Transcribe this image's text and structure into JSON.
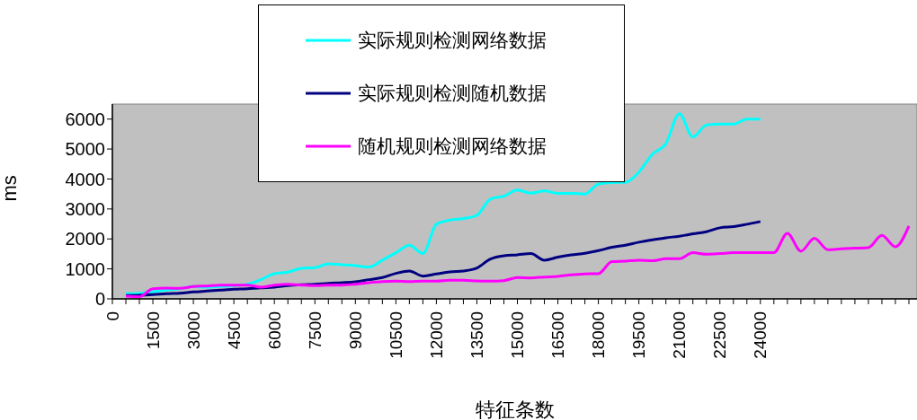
{
  "chart_data": {
    "type": "line",
    "xlabel": "特征条数",
    "ylabel": "ms",
    "xlim": [
      0,
      29800
    ],
    "ylim": [
      0,
      6500
    ],
    "yticks": [
      0,
      1000,
      2000,
      3000,
      4000,
      5000,
      6000
    ],
    "xticks": [
      0,
      {
        "value": 500,
        "label": null
      },
      {
        "value": 1000,
        "label": null
      },
      1500,
      {
        "value": 2000,
        "label": null
      },
      {
        "value": 2500,
        "label": null
      },
      3000,
      {
        "value": 3500,
        "label": null
      },
      {
        "value": 4000,
        "label": null
      },
      4500,
      {
        "value": 5000,
        "label": null
      },
      {
        "value": 5500,
        "label": null
      },
      6000,
      {
        "value": 6500,
        "label": null
      },
      {
        "value": 7000,
        "label": null
      },
      7500,
      {
        "value": 8000,
        "label": null
      },
      {
        "value": 8500,
        "label": null
      },
      9000,
      {
        "value": 9500,
        "label": null
      },
      {
        "value": 10000,
        "label": null
      },
      10500,
      {
        "value": 11000,
        "label": null
      },
      {
        "value": 11500,
        "label": null
      },
      12000,
      {
        "value": 12500,
        "label": null
      },
      {
        "value": 13000,
        "label": null
      },
      13500,
      {
        "value": 14000,
        "label": null
      },
      {
        "value": 14500,
        "label": null
      },
      15000,
      {
        "value": 15500,
        "label": null
      },
      {
        "value": 16000,
        "label": null
      },
      16500,
      {
        "value": 17000,
        "label": null
      },
      {
        "value": 17500,
        "label": null
      },
      18000,
      {
        "value": 18500,
        "label": null
      },
      {
        "value": 19000,
        "label": null
      },
      19500,
      {
        "value": 20000,
        "label": null
      },
      {
        "value": 20500,
        "label": null
      },
      21000,
      {
        "value": 21500,
        "label": null
      },
      {
        "value": 22000,
        "label": null
      },
      22500,
      {
        "value": 23000,
        "label": null
      },
      {
        "value": 23500,
        "label": null
      },
      24000,
      {
        "value": 24500,
        "label": null
      },
      {
        "value": 25000,
        "label": null
      },
      {
        "value": 25500,
        "label": null
      },
      {
        "value": 26000,
        "label": null
      },
      {
        "value": 26500,
        "label": null
      },
      {
        "value": 27000,
        "label": null
      },
      {
        "value": 27500,
        "label": null
      },
      {
        "value": 28000,
        "label": null
      },
      {
        "value": 28500,
        "label": null
      },
      {
        "value": 29000,
        "label": null
      },
      {
        "value": 29500,
        "label": null
      }
    ],
    "grid": false,
    "legend": "top",
    "marker": "none",
    "line_style": "solid",
    "series": [
      {
        "name": "实际规则检测网络数据",
        "color": "#00ffff",
        "x": [
          500,
          1000,
          1500,
          2000,
          2500,
          3000,
          3500,
          4000,
          4500,
          5000,
          5500,
          6000,
          6500,
          7000,
          7500,
          8000,
          8500,
          9000,
          9500,
          10000,
          10500,
          11000,
          11500,
          12000,
          12500,
          13000,
          13500,
          14000,
          14500,
          15000,
          15500,
          16000,
          16500,
          17000,
          17500,
          18000,
          18500,
          19000,
          19500,
          20000,
          20500,
          21000,
          21500,
          22000,
          22500,
          23000,
          23500,
          24000
        ],
        "values": [
          170,
          180,
          240,
          290,
          340,
          410,
          390,
          410,
          440,
          490,
          640,
          840,
          890,
          1020,
          1040,
          1170,
          1140,
          1110,
          1060,
          1290,
          1540,
          1790,
          1510,
          2490,
          2630,
          2680,
          2790,
          3330,
          3430,
          3630,
          3530,
          3600,
          3520,
          3520,
          3500,
          3830,
          3880,
          3890,
          4230,
          4830,
          5180,
          6180,
          5400,
          5800,
          5830,
          5830,
          6000,
          6000
        ]
      },
      {
        "name": "实际规则检测随机数据",
        "color": "#000080",
        "x": [
          500,
          1000,
          1500,
          2000,
          2500,
          3000,
          3500,
          4000,
          4500,
          5000,
          5500,
          6000,
          6500,
          7000,
          7500,
          8000,
          8500,
          9000,
          9500,
          10000,
          10500,
          11000,
          11500,
          12000,
          12500,
          13000,
          13500,
          14000,
          14500,
          15000,
          15500,
          16000,
          16500,
          17000,
          17500,
          18000,
          18500,
          19000,
          19500,
          20000,
          20500,
          21000,
          21500,
          22000,
          22500,
          23000,
          23500,
          24000
        ],
        "values": [
          110,
          120,
          140,
          170,
          190,
          230,
          260,
          290,
          320,
          340,
          370,
          390,
          440,
          470,
          490,
          520,
          540,
          570,
          640,
          710,
          850,
          930,
          760,
          830,
          900,
          930,
          1030,
          1330,
          1440,
          1470,
          1510,
          1290,
          1390,
          1470,
          1520,
          1610,
          1720,
          1790,
          1890,
          1970,
          2040,
          2090,
          2170,
          2240,
          2370,
          2410,
          2490,
          2580
        ]
      },
      {
        "name": "随机规则检测网络数据",
        "color": "#ff00ff",
        "x": [
          500,
          1000,
          1500,
          2000,
          2500,
          3000,
          3500,
          4000,
          4500,
          5000,
          5500,
          6000,
          6500,
          7000,
          7500,
          8000,
          8500,
          9000,
          9500,
          10000,
          10500,
          11000,
          11500,
          12000,
          12500,
          13000,
          13500,
          14000,
          14500,
          15000,
          15500,
          16000,
          16500,
          17000,
          17500,
          18000,
          18500,
          19000,
          19500,
          20000,
          20500,
          21000,
          21500,
          22000,
          22500,
          23000,
          23500,
          24000,
          24500,
          25000,
          25500,
          26000,
          26500,
          27000,
          27500,
          28000,
          28500,
          29000,
          29500
        ],
        "values": [
          90,
          70,
          340,
          360,
          350,
          410,
          430,
          460,
          460,
          460,
          390,
          460,
          490,
          460,
          440,
          460,
          460,
          490,
          540,
          580,
          590,
          580,
          590,
          590,
          620,
          620,
          600,
          590,
          610,
          710,
          700,
          730,
          750,
          800,
          830,
          840,
          1240,
          1260,
          1290,
          1270,
          1340,
          1340,
          1540,
          1490,
          1510,
          1540,
          1540,
          1540,
          1540,
          2190,
          1590,
          2020,
          1640,
          1670,
          1690,
          1710,
          2120,
          1740,
          2430
        ]
      }
    ]
  }
}
